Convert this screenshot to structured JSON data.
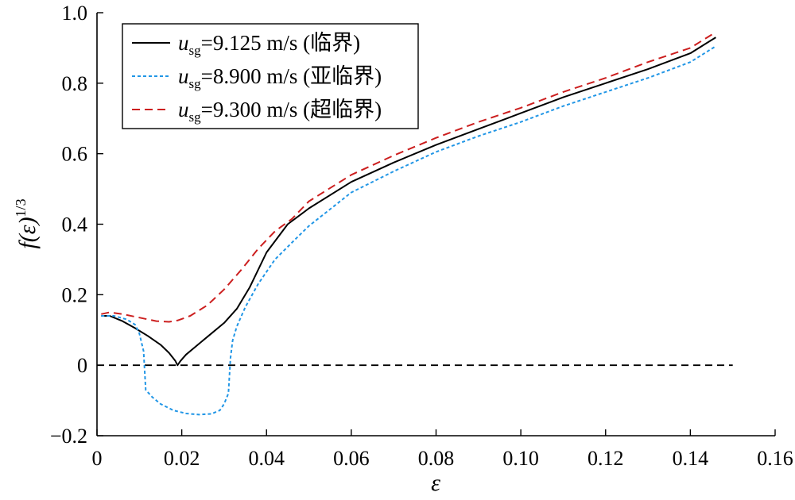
{
  "chart_data": {
    "type": "line",
    "xlabel": "ε",
    "ylabel": "f(ε)",
    "ylabel_superscript": "1/3",
    "xlim": [
      0,
      0.16
    ],
    "ylim": [
      -0.2,
      1.0
    ],
    "x_ticks": [
      {
        "value": 0,
        "label": "0"
      },
      {
        "value": 0.02,
        "label": "0.02"
      },
      {
        "value": 0.04,
        "label": "0.04"
      },
      {
        "value": 0.06,
        "label": "0.06"
      },
      {
        "value": 0.08,
        "label": "0.08"
      },
      {
        "value": 0.1,
        "label": "0.10"
      },
      {
        "value": 0.12,
        "label": "0.12"
      },
      {
        "value": 0.14,
        "label": "0.14"
      },
      {
        "value": 0.16,
        "label": "0.16"
      }
    ],
    "y_ticks": [
      {
        "value": -0.2,
        "label": "−0.2"
      },
      {
        "value": 0,
        "label": "0"
      },
      {
        "value": 0.2,
        "label": "0.2"
      },
      {
        "value": 0.4,
        "label": "0.4"
      },
      {
        "value": 0.6,
        "label": "0.6"
      },
      {
        "value": 0.8,
        "label": "0.8"
      },
      {
        "value": 1.0,
        "label": "1.0"
      }
    ],
    "grid": false,
    "legend_position": "top-left",
    "reference_line": {
      "y": 0,
      "x_range": [
        0,
        0.15
      ],
      "color": "#000000",
      "style": "dashed"
    },
    "series": [
      {
        "legend_var": "u",
        "legend_sub": "sg",
        "legend_rest": "=9.125 m/s (临界)",
        "color": "#000000",
        "style": "solid",
        "points": [
          [
            0.001,
            0.14
          ],
          [
            0.003,
            0.14
          ],
          [
            0.006,
            0.125
          ],
          [
            0.009,
            0.105
          ],
          [
            0.012,
            0.083
          ],
          [
            0.015,
            0.058
          ],
          [
            0.017,
            0.035
          ],
          [
            0.0185,
            0.012
          ],
          [
            0.019,
            0.0
          ],
          [
            0.0197,
            0.012
          ],
          [
            0.021,
            0.03
          ],
          [
            0.024,
            0.06
          ],
          [
            0.027,
            0.09
          ],
          [
            0.03,
            0.12
          ],
          [
            0.033,
            0.16
          ],
          [
            0.036,
            0.22
          ],
          [
            0.04,
            0.32
          ],
          [
            0.045,
            0.4
          ],
          [
            0.05,
            0.445
          ],
          [
            0.06,
            0.52
          ],
          [
            0.07,
            0.575
          ],
          [
            0.08,
            0.625
          ],
          [
            0.09,
            0.67
          ],
          [
            0.1,
            0.715
          ],
          [
            0.11,
            0.76
          ],
          [
            0.12,
            0.8
          ],
          [
            0.13,
            0.84
          ],
          [
            0.14,
            0.885
          ],
          [
            0.146,
            0.93
          ]
        ]
      },
      {
        "legend_var": "u",
        "legend_sub": "sg",
        "legend_rest": "=8.900 m/s (亚临界)",
        "color": "#2196e6",
        "style": "dotted",
        "points": [
          [
            0.001,
            0.14
          ],
          [
            0.004,
            0.14
          ],
          [
            0.007,
            0.13
          ],
          [
            0.009,
            0.115
          ],
          [
            0.01,
            0.09
          ],
          [
            0.011,
            0.04
          ],
          [
            0.0115,
            -0.07
          ],
          [
            0.013,
            -0.09
          ],
          [
            0.015,
            -0.11
          ],
          [
            0.018,
            -0.128
          ],
          [
            0.021,
            -0.137
          ],
          [
            0.024,
            -0.14
          ],
          [
            0.027,
            -0.138
          ],
          [
            0.029,
            -0.128
          ],
          [
            0.03,
            -0.11
          ],
          [
            0.031,
            -0.08
          ],
          [
            0.0315,
            0.02
          ],
          [
            0.032,
            0.07
          ],
          [
            0.033,
            0.11
          ],
          [
            0.035,
            0.165
          ],
          [
            0.038,
            0.23
          ],
          [
            0.042,
            0.3
          ],
          [
            0.047,
            0.36
          ],
          [
            0.05,
            0.395
          ],
          [
            0.06,
            0.49
          ],
          [
            0.07,
            0.55
          ],
          [
            0.08,
            0.605
          ],
          [
            0.09,
            0.65
          ],
          [
            0.1,
            0.69
          ],
          [
            0.11,
            0.735
          ],
          [
            0.12,
            0.775
          ],
          [
            0.13,
            0.815
          ],
          [
            0.14,
            0.86
          ],
          [
            0.146,
            0.905
          ]
        ]
      },
      {
        "legend_var": "u",
        "legend_sub": "sg",
        "legend_rest": "=9.300 m/s (超临界)",
        "color": "#cc1f1f",
        "style": "dashed",
        "points": [
          [
            0.001,
            0.145
          ],
          [
            0.003,
            0.15
          ],
          [
            0.006,
            0.145
          ],
          [
            0.01,
            0.135
          ],
          [
            0.014,
            0.125
          ],
          [
            0.017,
            0.123
          ],
          [
            0.019,
            0.127
          ],
          [
            0.022,
            0.14
          ],
          [
            0.026,
            0.17
          ],
          [
            0.03,
            0.215
          ],
          [
            0.034,
            0.27
          ],
          [
            0.038,
            0.33
          ],
          [
            0.042,
            0.38
          ],
          [
            0.046,
            0.415
          ],
          [
            0.05,
            0.465
          ],
          [
            0.06,
            0.54
          ],
          [
            0.07,
            0.595
          ],
          [
            0.08,
            0.645
          ],
          [
            0.09,
            0.69
          ],
          [
            0.1,
            0.73
          ],
          [
            0.11,
            0.775
          ],
          [
            0.12,
            0.815
          ],
          [
            0.13,
            0.86
          ],
          [
            0.14,
            0.9
          ],
          [
            0.146,
            0.945
          ]
        ]
      }
    ]
  }
}
